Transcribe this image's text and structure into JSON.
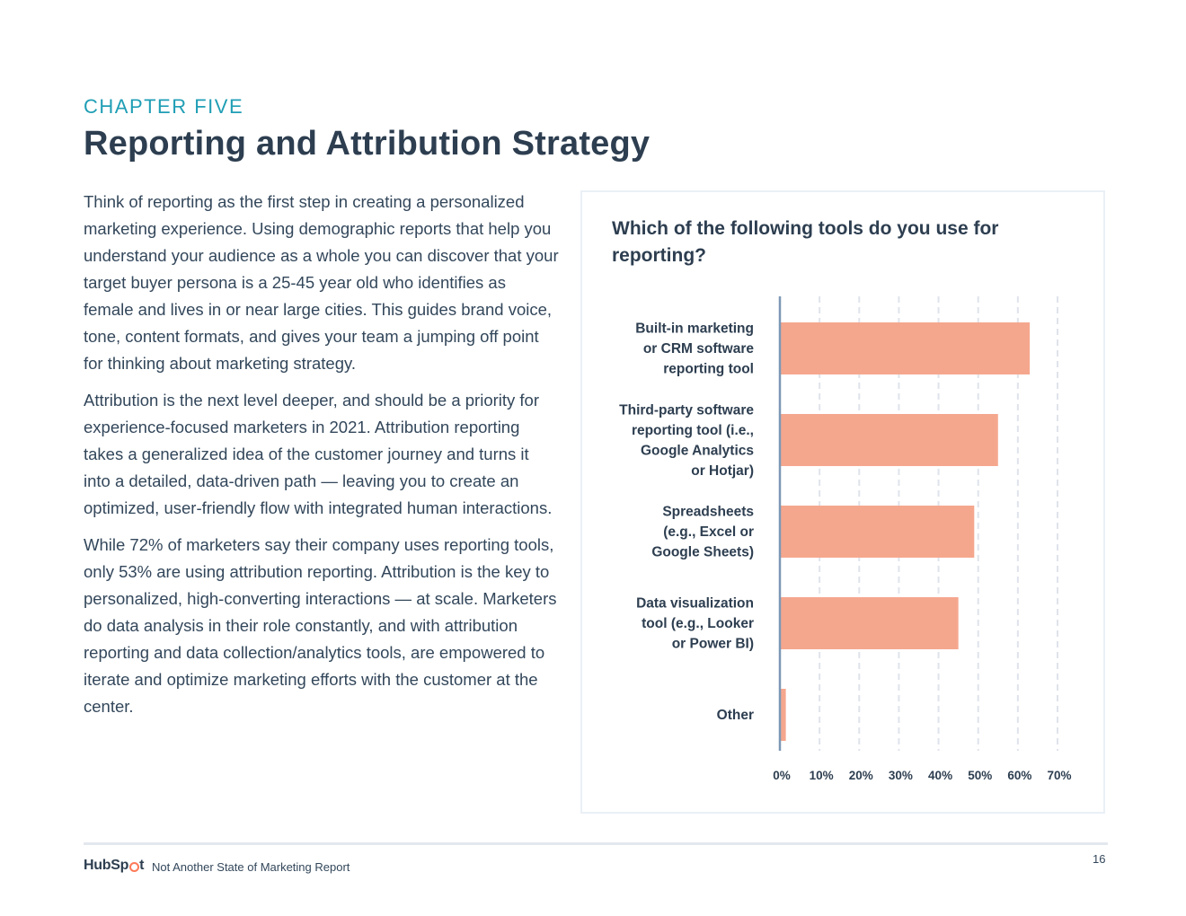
{
  "header": {
    "chapter": "CHAPTER FIVE",
    "title": "Reporting and Attribution Strategy"
  },
  "body": {
    "paragraphs": [
      "Think of reporting as the first step in creating a personalized marketing experience. Using demographic reports that help you understand your audience as a whole you can discover that your target buyer persona is a 25-45 year old who identifies as female and lives in or near large cities. This guides brand voice, tone, content formats, and gives your team a jumping off point for thinking about marketing strategy.",
      "Attribution is the next level deeper, and should be a priority for experience-focused marketers in 2021. Attribution reporting takes a generalized idea of the customer journey and turns it into a detailed, data-driven path — leaving you to create an optimized, user-friendly flow with integrated human interactions.",
      "While 72% of marketers say their company uses reporting tools, only 53% are using attribution reporting. Attribution is the key to personalized, high-converting interactions — at scale. Marketers do data analysis in their role constantly, and with attribution reporting and data collection/analytics tools, are empowered to iterate and optimize marketing efforts with the customer at the center."
    ]
  },
  "chart_data": {
    "type": "bar",
    "orientation": "horizontal",
    "title": "Which of the following tools do you use for reporting?",
    "categories": [
      [
        "Built-in marketing",
        "or CRM software",
        "reporting tool"
      ],
      [
        "Third-party software",
        "reporting tool (i.e.,",
        "Google Analytics",
        "or Hotjar)"
      ],
      [
        "Spreadsheets",
        "(e.g., Excel or",
        "Google Sheets)"
      ],
      [
        "Data visualization",
        "tool (e.g., Looker",
        "or Power BI)"
      ],
      [
        "Other"
      ]
    ],
    "values": [
      63,
      55,
      49,
      45,
      1.5
    ],
    "xlim": [
      0,
      70
    ],
    "xticks": [
      "0%",
      "10%",
      "20%",
      "30%",
      "40%",
      "50%",
      "60%",
      "70%"
    ],
    "xlabel": "",
    "ylabel": "",
    "grid": true,
    "bar_color": "#f5a78e",
    "grid_color": "#dfe3eb",
    "axis_color": "#7c98b6"
  },
  "footer": {
    "logo_prefix": "HubSp",
    "logo_suffix": "t",
    "report_name": "Not Another State of Marketing Report",
    "page_number": "16"
  }
}
